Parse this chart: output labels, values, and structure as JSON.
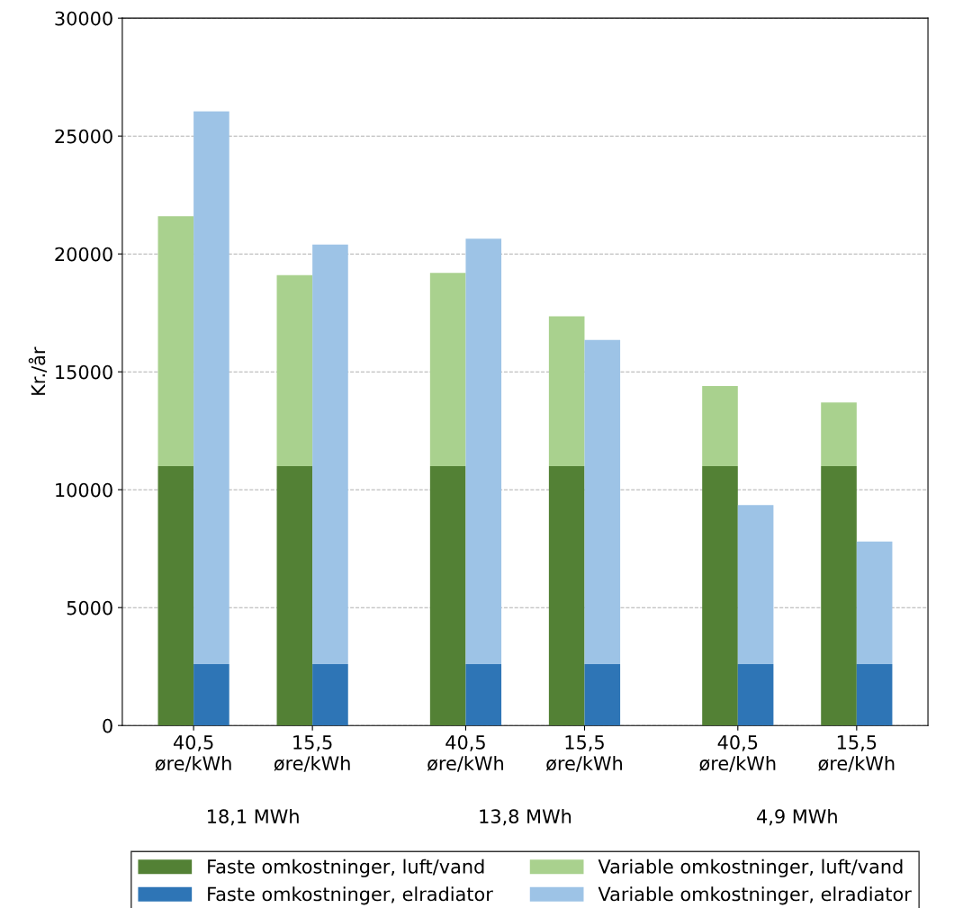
{
  "chart_data": [
    {
      "type": "bar",
      "stacked": true,
      "ylabel": "Kr./år",
      "categories": [
        "40,5\nøre/kWh",
        "15,5\nøre/kWh",
        "40,5\nøre/kWh",
        "15,5\nøre/kWh",
        "40,5\nøre/kWh",
        "15,5\nøre/kWh"
      ],
      "series": [
        {
          "name": "Faste omkostninger, luft/vand",
          "color": "#538135",
          "values": [
            11000,
            11000,
            11000,
            11000,
            11000,
            11000
          ]
        },
        {
          "name": "Variable omkostninger, luft/vand",
          "color": "#a9d18e",
          "values": [
            10600,
            8100,
            8200,
            6350,
            3400,
            2700
          ]
        }
      ],
      "annotations": [
        "18,1 MWh",
        "13,8 MWh",
        "4,9 MWh"
      ],
      "ylim": [
        0,
        30000
      ],
      "yticks": [
        0,
        5000,
        10000,
        15000,
        20000,
        25000,
        30000
      ],
      "grid": "y",
      "legend": "bottom"
    },
    {
      "type": "bar",
      "stacked": true,
      "tick_labels": false,
      "categories": [
        null,
        null,
        null,
        null,
        null,
        null
      ],
      "series": [
        {
          "name": "Faste omkostninger, elradiator",
          "color": "#2e75b6",
          "values": [
            2600,
            2600,
            2600,
            2600,
            2600,
            2600
          ]
        },
        {
          "name": "Variable omkostninger, elradiator",
          "color": "#9dc3e6",
          "values": [
            23450,
            17800,
            18050,
            13750,
            6750,
            5200
          ]
        }
      ],
      "ylim": [
        0,
        30000
      ],
      "yticks": [
        0,
        5000,
        10000,
        15000,
        20000,
        25000,
        30000
      ],
      "legend": "bottom"
    }
  ]
}
